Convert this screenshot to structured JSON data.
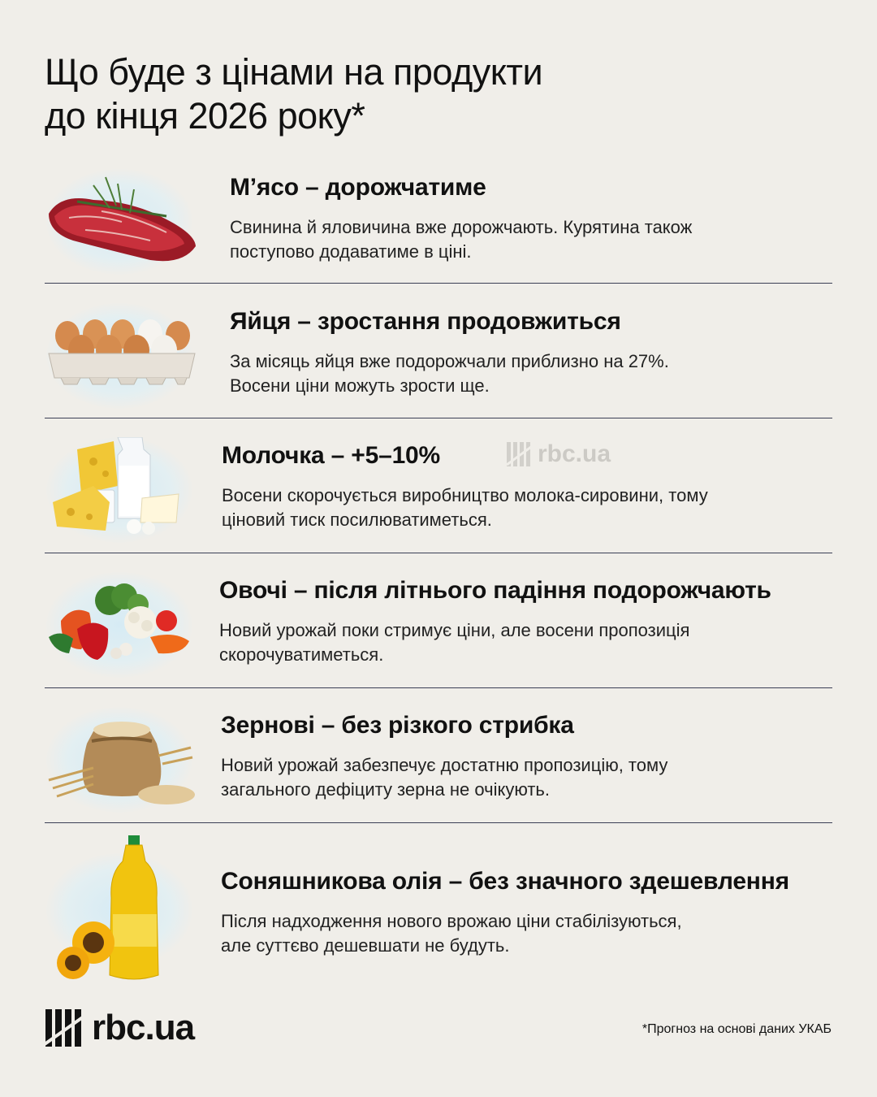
{
  "title": {
    "line1": "Що буде з цінами на продукти",
    "line2": "до кінця 2026 року*"
  },
  "items": [
    {
      "heading": "М’ясо – дорожчатиме",
      "desc1": "Свинина й яловичина вже дорожчають. Курятина також",
      "desc2": "поступово додаватиме в ціні.",
      "icon": "meat-icon"
    },
    {
      "heading": "Яйця – зростання продовжиться",
      "desc1": "За місяць яйця вже подорожчали приблизно на 27%.",
      "desc2": "Восени ціни можуть зрости ще.",
      "icon": "eggs-icon"
    },
    {
      "heading": "Молочка – +5–10%",
      "desc1": "Восени скорочується виробництво молока-сировини, тому",
      "desc2": "ціновий тиск посилюватиметься.",
      "icon": "dairy-icon"
    },
    {
      "heading": "Овочі – після літнього падіння подорожчають",
      "desc1": "Новий урожай поки стримує ціни, але восени пропозиція",
      "desc2": "скорочуватиметься.",
      "icon": "vegetables-icon"
    },
    {
      "heading": "Зернові – без різкого стрибка",
      "desc1": "Новий урожай забезпечує достатню пропозицію, тому",
      "desc2": "загального дефіциту зерна не очікують.",
      "icon": "grain-sack-icon"
    },
    {
      "heading": "Соняшникова олія – без значного здешевлення",
      "desc1": "Після надходження нового врожаю ціни стабілізуються,",
      "desc2": "але суттєво дешевшати не будуть.",
      "icon": "sunflower-oil-icon"
    }
  ],
  "watermark": "rbc.ua",
  "footer": {
    "brand": "rbc.ua",
    "footnote": "*Прогноз на основі даних УКАБ"
  },
  "colors": {
    "background": "#f0eee9",
    "text": "#111111",
    "divider": "#3b3f55",
    "glow": "#d6ebf4"
  }
}
